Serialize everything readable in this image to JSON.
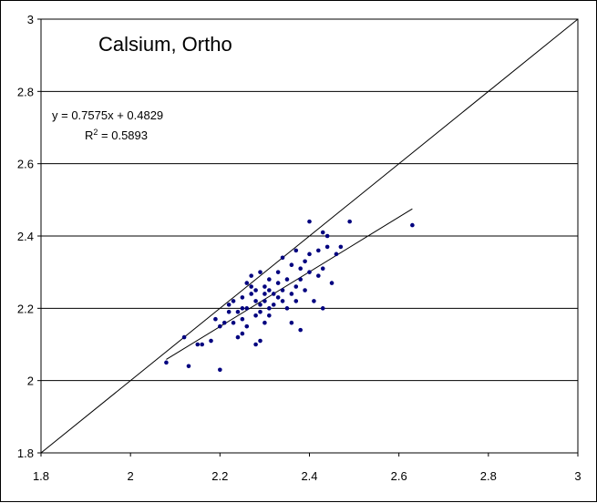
{
  "chart_data": {
    "type": "scatter",
    "title": "Calsium, Ortho",
    "xlabel": "",
    "ylabel": "",
    "xlim": [
      1.8,
      3
    ],
    "ylim": [
      1.8,
      3
    ],
    "x_ticks": [
      "1.8",
      "2",
      "2.2",
      "2.4",
      "2.6",
      "2.8",
      "3"
    ],
    "y_ticks": [
      "1.8",
      "2",
      "2.2",
      "2.4",
      "2.6",
      "2.8",
      "3"
    ],
    "grid": "horizontal",
    "trendline_equation": "y = 0.7575x + 0.4829",
    "r_squared_label": "R",
    "r_squared_superscript": "2",
    "r_squared_value": " = 0.5893",
    "colors": {
      "points": "#00007f",
      "lines": "#000000",
      "grid": "#000000"
    },
    "identity_line": {
      "x": [
        1.8,
        3
      ],
      "y": [
        1.8,
        3
      ]
    },
    "trendline": {
      "slope": 0.7575,
      "intercept": 0.4829,
      "x": [
        2.08,
        2.63
      ]
    },
    "series": [
      {
        "points": [
          [
            2.08,
            2.05
          ],
          [
            2.12,
            2.12
          ],
          [
            2.13,
            2.04
          ],
          [
            2.15,
            2.1
          ],
          [
            2.16,
            2.1
          ],
          [
            2.18,
            2.11
          ],
          [
            2.19,
            2.17
          ],
          [
            2.2,
            2.03
          ],
          [
            2.2,
            2.15
          ],
          [
            2.21,
            2.16
          ],
          [
            2.22,
            2.19
          ],
          [
            2.22,
            2.21
          ],
          [
            2.23,
            2.16
          ],
          [
            2.23,
            2.22
          ],
          [
            2.24,
            2.12
          ],
          [
            2.24,
            2.19
          ],
          [
            2.25,
            2.13
          ],
          [
            2.25,
            2.17
          ],
          [
            2.25,
            2.2
          ],
          [
            2.25,
            2.23
          ],
          [
            2.26,
            2.15
          ],
          [
            2.26,
            2.2
          ],
          [
            2.26,
            2.27
          ],
          [
            2.27,
            2.24
          ],
          [
            2.27,
            2.26
          ],
          [
            2.27,
            2.29
          ],
          [
            2.28,
            2.1
          ],
          [
            2.28,
            2.18
          ],
          [
            2.28,
            2.22
          ],
          [
            2.28,
            2.25
          ],
          [
            2.29,
            2.11
          ],
          [
            2.29,
            2.19
          ],
          [
            2.29,
            2.21
          ],
          [
            2.29,
            2.3
          ],
          [
            2.3,
            2.16
          ],
          [
            2.3,
            2.22
          ],
          [
            2.3,
            2.24
          ],
          [
            2.3,
            2.26
          ],
          [
            2.31,
            2.18
          ],
          [
            2.31,
            2.2
          ],
          [
            2.31,
            2.25
          ],
          [
            2.31,
            2.28
          ],
          [
            2.32,
            2.21
          ],
          [
            2.32,
            2.24
          ],
          [
            2.33,
            2.23
          ],
          [
            2.33,
            2.27
          ],
          [
            2.33,
            2.3
          ],
          [
            2.34,
            2.22
          ],
          [
            2.34,
            2.25
          ],
          [
            2.34,
            2.34
          ],
          [
            2.35,
            2.2
          ],
          [
            2.35,
            2.28
          ],
          [
            2.36,
            2.16
          ],
          [
            2.36,
            2.24
          ],
          [
            2.36,
            2.32
          ],
          [
            2.37,
            2.22
          ],
          [
            2.37,
            2.26
          ],
          [
            2.37,
            2.36
          ],
          [
            2.38,
            2.14
          ],
          [
            2.38,
            2.28
          ],
          [
            2.38,
            2.31
          ],
          [
            2.39,
            2.25
          ],
          [
            2.39,
            2.33
          ],
          [
            2.4,
            2.3
          ],
          [
            2.4,
            2.35
          ],
          [
            2.4,
            2.44
          ],
          [
            2.41,
            2.22
          ],
          [
            2.42,
            2.29
          ],
          [
            2.42,
            2.36
          ],
          [
            2.43,
            2.2
          ],
          [
            2.43,
            2.31
          ],
          [
            2.43,
            2.41
          ],
          [
            2.44,
            2.37
          ],
          [
            2.44,
            2.4
          ],
          [
            2.45,
            2.27
          ],
          [
            2.46,
            2.35
          ],
          [
            2.47,
            2.37
          ],
          [
            2.49,
            2.44
          ],
          [
            2.63,
            2.43
          ]
        ]
      }
    ]
  }
}
